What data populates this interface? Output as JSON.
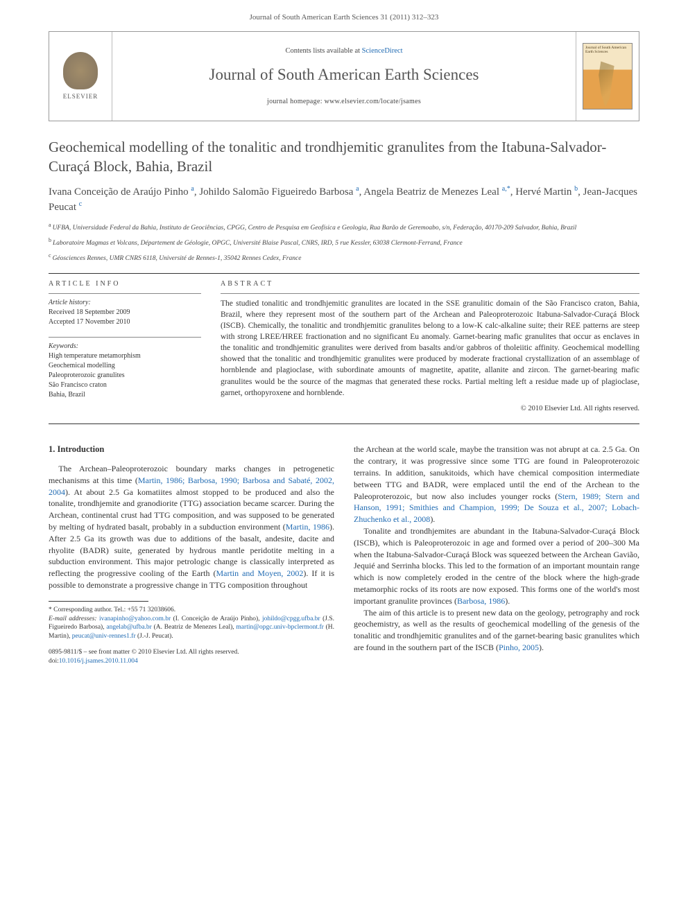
{
  "header": {
    "citation": "Journal of South American Earth Sciences 31 (2011) 312–323"
  },
  "journalBox": {
    "publisher": "ELSEVIER",
    "contentsPrefix": "Contents lists available at ",
    "contentsLink": "ScienceDirect",
    "journalName": "Journal of South American Earth Sciences",
    "homepagePrefix": "journal homepage: ",
    "homepageUrl": "www.elsevier.com/locate/jsames",
    "coverTitle": "Journal of South American Earth Sciences"
  },
  "article": {
    "title": "Geochemical modelling of the tonalitic and trondhjemitic granulites from the Itabuna-Salvador-Curaçá Block, Bahia, Brazil",
    "authors": [
      {
        "name": "Ivana Conceição de Araújo Pinho",
        "aff": "a"
      },
      {
        "name": "Johildo Salomão Figueiredo Barbosa",
        "aff": "a"
      },
      {
        "name": "Angela Beatriz de Menezes Leal",
        "aff": "a,*"
      },
      {
        "name": "Hervé Martin",
        "aff": "b"
      },
      {
        "name": "Jean-Jacques Peucat",
        "aff": "c"
      }
    ],
    "affiliations": [
      {
        "sup": "a",
        "text": "UFBA, Universidade Federal da Bahia, Instituto de Geociências, CPGG, Centro de Pesquisa em Geofísica e Geologia, Rua Barão de Geremoabo, s/n, Federação, 40170-209 Salvador, Bahia, Brazil"
      },
      {
        "sup": "b",
        "text": "Laboratoire Magmas et Volcans, Département de Géologie, OPGC, Université Blaise Pascal, CNRS, IRD, 5 rue Kessler, 63038 Clermont-Ferrand, France"
      },
      {
        "sup": "c",
        "text": "Géosciences Rennes, UMR CNRS 6118, Université de Rennes-1, 35042 Rennes Cedex, France"
      }
    ]
  },
  "info": {
    "headingInfo": "ARTICLE INFO",
    "headingAbstract": "ABSTRACT",
    "historyLabel": "Article history:",
    "received": "Received 18 September 2009",
    "accepted": "Accepted 17 November 2010",
    "keywordsLabel": "Keywords:",
    "keywords": [
      "High temperature metamorphism",
      "Geochemical modelling",
      "Paleoproterozoic granulites",
      "São Francisco craton",
      "Bahia, Brazil"
    ],
    "abstract": "The studied tonalitic and trondhjemitic granulites are located in the SSE granulitic domain of the São Francisco craton, Bahia, Brazil, where they represent most of the southern part of the Archean and Paleoproterozoic Itabuna-Salvador-Curaçá Block (ISCB). Chemically, the tonalitic and trondhjemitic granulites belong to a low-K calc-alkaline suite; their REE patterns are steep with strong LREE/HREE fractionation and no significant Eu anomaly. Garnet-bearing mafic granulites that occur as enclaves in the tonalitic and trondhjemitic granulites were derived from basalts and/or gabbros of tholeiitic affinity. Geochemical modelling showed that the tonalitic and trondhjemitic granulites were produced by moderate fractional crystallization of an assemblage of hornblende and plagioclase, with subordinate amounts of magnetite, apatite, allanite and zircon. The garnet-bearing mafic granulites would be the source of the magmas that generated these rocks. Partial melting left a residue made up of plagioclase, garnet, orthopyroxene and hornblende.",
    "copyright": "© 2010 Elsevier Ltd. All rights reserved."
  },
  "body": {
    "sectionHeading": "1. Introduction",
    "para1a": "The Archean–Paleoproterozoic boundary marks changes in petrogenetic mechanisms at this time (",
    "para1ref1": "Martin, 1986; Barbosa, 1990; Barbosa and Sabaté, 2002, 2004",
    "para1b": "). At about 2.5 Ga komatiites almost stopped to be produced and also the tonalite, trondhjemite and granodiorite (TTG) association became scarcer. During the Archean, continental crust had TTG composition, and was supposed to be generated by melting of hydrated basalt, probably in a subduction environment (",
    "para1ref2": "Martin, 1986",
    "para1c": "). After 2.5 Ga its growth was due to additions of the basalt, andesite, dacite and rhyolite (BADR) suite, generated by hydrous mantle peridotite melting in a subduction environment. This major petrologic change is classically interpreted as reflecting the progressive cooling of the Earth (",
    "para1ref3": "Martin and Moyen, 2002",
    "para1d": "). If it is possible to demonstrate a progressive change in TTG composition throughout",
    "para2a": "the Archean at the world scale, maybe the transition was not abrupt at ca. 2.5 Ga. On the contrary, it was progressive since some TTG are found in Paleoproterozoic terrains. In addition, sanukitoids, which have chemical composition intermediate between TTG and BADR, were emplaced until the end of the Archean to the Paleoproterozoic, but now also includes younger rocks (",
    "para2ref1": "Stern, 1989; Stern and Hanson, 1991; Smithies and Champion, 1999; De Souza et al., 2007; Lobach-Zhuchenko et al., 2008",
    "para2b": ").",
    "para3a": "Tonalite and trondhjemites are abundant in the Itabuna-Salvador-Curaçá Block (ISCB), which is Paleoproterozoic in age and formed over a period of 200–300 Ma when the Itabuna-Salvador-Curaçá Block was squeezed between the Archean Gavião, Jequié and Serrinha blocks. This led to the formation of an important mountain range which is now completely eroded in the centre of the block where the high-grade metamorphic rocks of its roots are now exposed. This forms one of the world's most important granulite provinces (",
    "para3ref1": "Barbosa, 1986",
    "para3b": ").",
    "para4a": "The aim of this article is to present new data on the geology, petrography and rock geochemistry, as well as the results of geochemical modelling of the genesis of the tonalitic and trondhjemitic granulites and of the garnet-bearing basic granulites which are found in the southern part of the ISCB (",
    "para4ref1": "Pinho, 2005",
    "para4b": ")."
  },
  "footnotes": {
    "corr": "* Corresponding author. Tel.: +55 71 32038606.",
    "emailsLabel": "E-mail addresses:",
    "emails": [
      {
        "email": "ivanapinho@yahoo.com.br",
        "who": " (I. Conceição de Araújo Pinho), "
      },
      {
        "email": "johildo@cpgg.ufba.br",
        "who": " (J.S. Figueiredo Barbosa), "
      },
      {
        "email": "angelab@ufba.br",
        "who": " (A. Beatriz de Menezes Leal), "
      },
      {
        "email": "martin@opgc.univ-bpclermont.fr",
        "who": " (H. Martin), "
      },
      {
        "email": "peucat@univ-rennes1.fr",
        "who": " (J.-J. Peucat)."
      }
    ]
  },
  "footer": {
    "issn": "0895-9811/$ – see front matter © 2010 Elsevier Ltd. All rights reserved.",
    "doiLabel": "doi:",
    "doi": "10.1016/j.jsames.2010.11.004"
  }
}
